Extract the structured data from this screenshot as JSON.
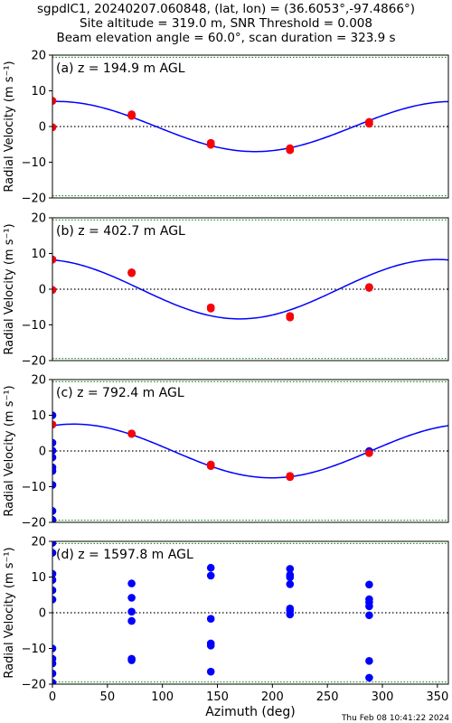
{
  "figure": {
    "title_lines": [
      "sgpdlC1, 20240207.060848, (lat, lon) = (36.6053°,-97.4866°)",
      "Site altitude = 319.0 m, SNR Threshold = 0.008",
      "Beam elevation angle = 60.0°, scan duration = 323.9 s"
    ],
    "footer_timestamp": "Thu Feb 08 10:41:22 2024",
    "colors": {
      "fit_line": "#0000ff",
      "good_points": "#ff0000",
      "all_points": "#0000ff",
      "zero_line": "#000000",
      "limit_lines": "#008000"
    }
  },
  "chart_data": [
    {
      "type": "scatter",
      "panel_label": "(a) z = 194.9 m AGL",
      "xlabel": "",
      "ylabel": "Radial Velocity (m s⁻¹)",
      "xlim": [
        0,
        360
      ],
      "ylim": [
        -20,
        20
      ],
      "xticks": [],
      "yticks": [
        -20,
        -10,
        0,
        10,
        20
      ],
      "hlines": {
        "zero": 0,
        "limits": [
          -19.4,
          19.4
        ]
      },
      "fit": {
        "u": 0.52,
        "v": 7.0,
        "w": 0.0
      },
      "series": [
        {
          "role": "all",
          "x": [
            0,
            0,
            72,
            72,
            144,
            144,
            216,
            216,
            288,
            288
          ],
          "y": [
            7.2,
            -0.2,
            3.4,
            3.0,
            -4.6,
            -5.1,
            -6.1,
            -6.6,
            1.3,
            0.8
          ]
        },
        {
          "role": "good",
          "x": [
            0,
            0,
            72,
            72,
            144,
            144,
            216,
            216,
            288,
            288
          ],
          "y": [
            7.2,
            -0.2,
            3.4,
            3.0,
            -4.6,
            -5.1,
            -6.1,
            -6.6,
            1.3,
            0.8
          ]
        }
      ]
    },
    {
      "type": "scatter",
      "panel_label": "(b) z = 402.7 m AGL",
      "xlabel": "",
      "ylabel": "Radial Velocity (m s⁻¹)",
      "xlim": [
        0,
        360
      ],
      "ylim": [
        -20,
        20
      ],
      "xticks": [],
      "yticks": [
        -20,
        -10,
        0,
        10,
        20
      ],
      "hlines": {
        "zero": 0,
        "limits": [
          -19.4,
          19.4
        ]
      },
      "fit": {
        "u": -1.4,
        "v": 8.2,
        "w": 0.0
      },
      "series": [
        {
          "role": "all",
          "x": [
            0,
            0,
            72,
            72,
            144,
            144,
            216,
            216,
            288,
            288
          ],
          "y": [
            8.3,
            -0.2,
            4.7,
            4.5,
            -5.1,
            -5.4,
            -7.5,
            -7.9,
            0.6,
            0.4
          ]
        },
        {
          "role": "good",
          "x": [
            0,
            0,
            72,
            72,
            144,
            144,
            216,
            216,
            288,
            288
          ],
          "y": [
            8.3,
            -0.2,
            4.7,
            4.5,
            -5.1,
            -5.4,
            -7.5,
            -7.9,
            0.6,
            0.4
          ]
        }
      ]
    },
    {
      "type": "scatter",
      "panel_label": "(c) z = 792.4 m AGL",
      "xlabel": "",
      "ylabel": "Radial Velocity (m s⁻¹)",
      "xlim": [
        0,
        360
      ],
      "ylim": [
        -20,
        20
      ],
      "xticks": [],
      "yticks": [
        -20,
        -10,
        0,
        10,
        20
      ],
      "hlines": {
        "zero": 0,
        "limits": [
          -19.4,
          19.4
        ]
      },
      "fit": {
        "u": 2.5,
        "v": 7.1,
        "w": 0.0
      },
      "series": [
        {
          "role": "all",
          "x": [
            0,
            0,
            0,
            0,
            0,
            0,
            0,
            0,
            0,
            0,
            72,
            72,
            144,
            144,
            216,
            216,
            288,
            288
          ],
          "y": [
            10.0,
            7.4,
            2.3,
            0.1,
            -1.8,
            -4.6,
            -5.6,
            -9.5,
            -16.8,
            -19.3,
            4.9,
            4.8,
            -3.8,
            -4.2,
            -7.0,
            -7.3,
            0.0,
            -0.6
          ]
        },
        {
          "role": "good",
          "x": [
            0,
            72,
            72,
            144,
            144,
            216,
            216,
            288
          ],
          "y": [
            7.4,
            4.9,
            4.8,
            -3.8,
            -4.2,
            -7.0,
            -7.3,
            -0.6
          ]
        }
      ]
    },
    {
      "type": "scatter",
      "panel_label": "(d) z = 1597.8 m AGL",
      "xlabel": "Azimuth (deg)",
      "ylabel": "Radial Velocity (m s⁻¹)",
      "xlim": [
        0,
        360
      ],
      "ylim": [
        -20,
        20
      ],
      "xticks": [
        0,
        50,
        100,
        150,
        200,
        250,
        300,
        350
      ],
      "yticks": [
        -20,
        -10,
        0,
        10,
        20
      ],
      "hlines": {
        "zero": 0,
        "limits": [
          -19.4,
          19.4
        ]
      },
      "series": [
        {
          "role": "all",
          "x": [
            0,
            0,
            0,
            0,
            0,
            0,
            0,
            0,
            0,
            0,
            0,
            72,
            72,
            72,
            72,
            72,
            72,
            144,
            144,
            144,
            144,
            144,
            144,
            216,
            216,
            216,
            216,
            216,
            216,
            216,
            288,
            288,
            288,
            288,
            288,
            288,
            288
          ],
          "y": [
            19.6,
            16.8,
            10.9,
            9.2,
            6.3,
            3.7,
            -10.0,
            -12.9,
            -14.2,
            -17.0,
            -19.6,
            8.2,
            4.2,
            0.3,
            -2.3,
            -12.9,
            -13.3,
            12.6,
            10.4,
            -1.7,
            -8.6,
            -9.2,
            -16.5,
            12.3,
            10.6,
            9.9,
            8.0,
            1.2,
            0.6,
            -0.5,
            7.9,
            3.8,
            2.9,
            1.8,
            -0.7,
            -13.5,
            -18.2
          ]
        }
      ]
    }
  ]
}
